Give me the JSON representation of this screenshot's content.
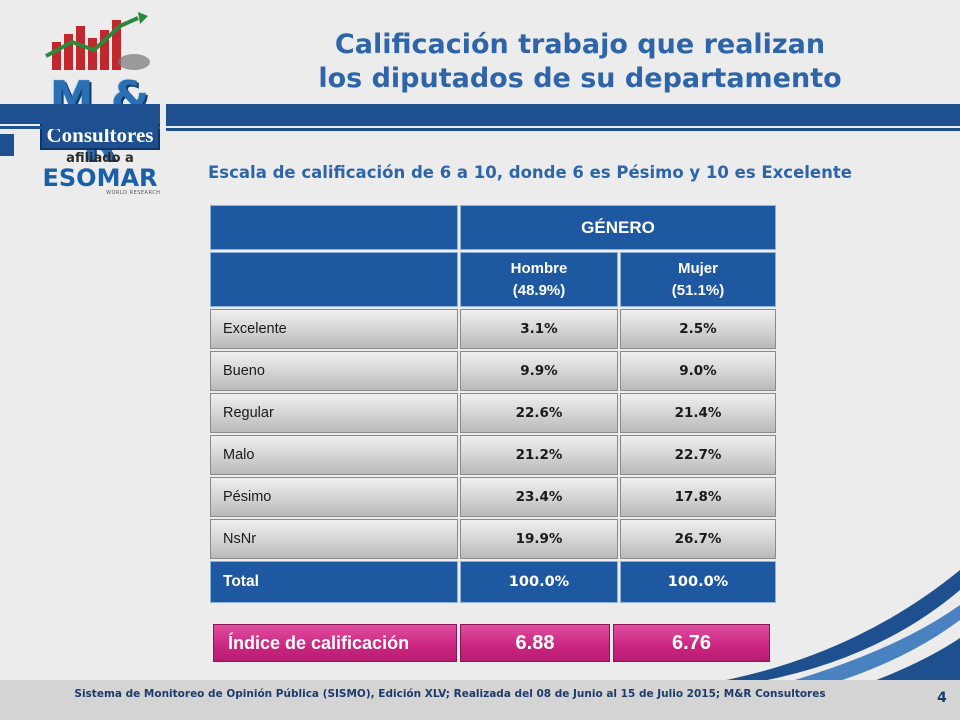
{
  "logo": {
    "brand": "M & R",
    "company": "Consultores",
    "affiliation": "afiliado a",
    "org": "ESOMAR",
    "org_tagline": "WORLD RESEARCH"
  },
  "title": {
    "line1": "Calificación trabajo que realizan",
    "line2": "los diputados de su departamento"
  },
  "subtitle": "Escala de calificación de 6 a 10, donde 6 es Pésimo y 10 es Excelente",
  "table": {
    "group_header": "GÉNERO",
    "columns": [
      {
        "name": "Hombre",
        "share": "(48.9%)"
      },
      {
        "name": "Mujer",
        "share": "(51.1%)"
      }
    ],
    "rows": [
      {
        "label": "Excelente",
        "values": [
          "3.1%",
          "2.5%"
        ]
      },
      {
        "label": "Bueno",
        "values": [
          "9.9%",
          "9.0%"
        ]
      },
      {
        "label": "Regular",
        "values": [
          "22.6%",
          "21.4%"
        ]
      },
      {
        "label": "Malo",
        "values": [
          "21.2%",
          "22.7%"
        ]
      },
      {
        "label": "Pésimo",
        "values": [
          "23.4%",
          "17.8%"
        ]
      },
      {
        "label": "NsNr",
        "values": [
          "19.9%",
          "26.7%"
        ]
      }
    ],
    "total": {
      "label": "Total",
      "values": [
        "100.0%",
        "100.0%"
      ]
    }
  },
  "index": {
    "label": "Índice de calificación",
    "values": [
      "6.88",
      "6.76"
    ]
  },
  "footer": "Sistema de Monitoreo de Opinión Pública (SISMO), Edición XLV; Realizada del 08 de Junio al 15 de Julio 2015; M&R Consultores",
  "page_number": "4",
  "colors": {
    "brand_blue": "#1e4f8e",
    "title_blue": "#2e65a8",
    "header_blue": "#1e58a0",
    "index_pink": "#c9257f"
  }
}
